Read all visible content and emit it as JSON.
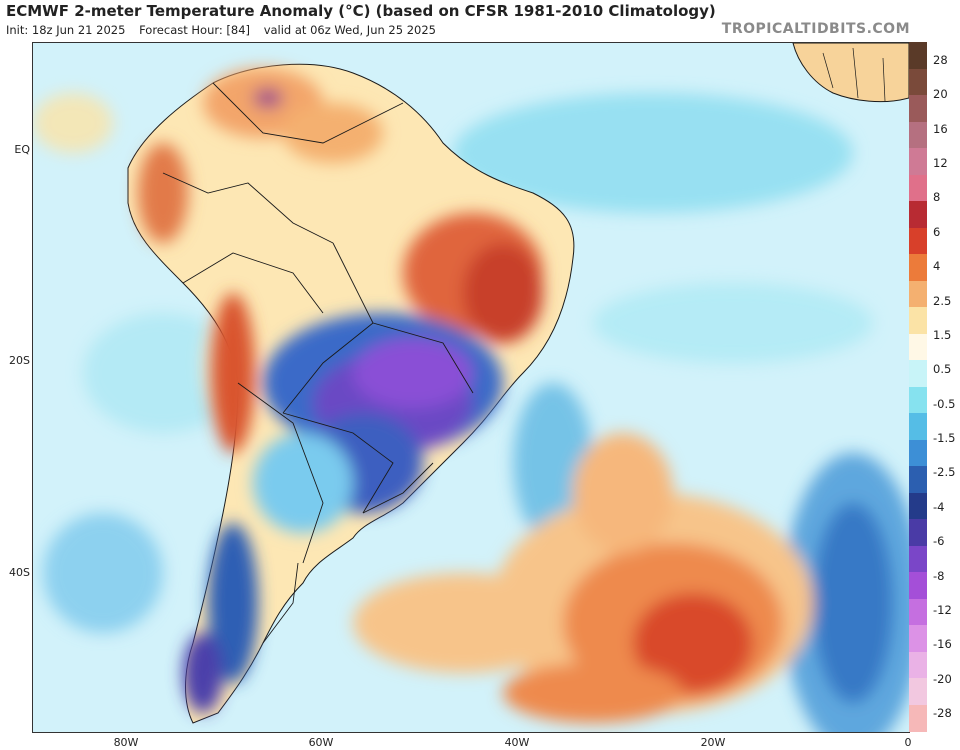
{
  "header": {
    "title": "ECMWF 2-meter Temperature Anomaly (°C) (based on CFSR 1981-2010 Climatology)",
    "init": "Init: 18z Jun 21 2025",
    "forecast_hour": "Forecast Hour: [84]",
    "valid": "valid at 06z Wed, Jun 25 2025",
    "brand": "TROPICALTIDBITS.COM"
  },
  "axes": {
    "lat_labels": [
      "EQ",
      "20S",
      "40S"
    ],
    "lon_labels": [
      "80W",
      "60W",
      "40W",
      "20W",
      "0"
    ]
  },
  "legend": {
    "labels": [
      "28",
      "20",
      "16",
      "12",
      "8",
      "6",
      "4",
      "2.5",
      "1.5",
      "0.5",
      "-0.5",
      "-1.5",
      "-2.5",
      "-4",
      "-6",
      "-8",
      "-12",
      "-16",
      "-20",
      "-28"
    ],
    "colors": [
      "#5a3a28",
      "#7a4a3a",
      "#9a5a5a",
      "#b57080",
      "#cf7a95",
      "#e0708a",
      "#b82b33",
      "#d8402a",
      "#ec7b3a",
      "#f4b070",
      "#fbe3a6",
      "#fff8e6",
      "#c8f4f8",
      "#86e2ef",
      "#55bde6",
      "#3d8fd6",
      "#2c5fb0",
      "#243b8a",
      "#4a3ba6",
      "#7a46c8",
      "#a44fd8",
      "#c56fe0",
      "#dc92e6",
      "#eab2e6",
      "#f2c8e0",
      "#f6b8b8"
    ]
  }
}
